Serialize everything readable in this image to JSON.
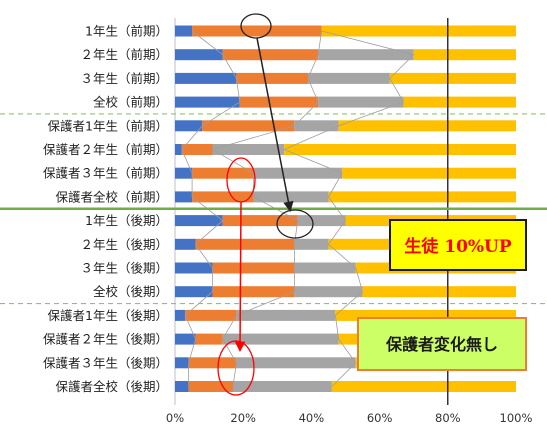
{
  "chart_data": {
    "type": "bar",
    "orientation": "horizontal",
    "stacked": "percent",
    "categories": [
      "1年生（前期）",
      "２年生（前期）",
      "３年生（前期）",
      "全校（前期）",
      "保護者1年生（前期）",
      "保護者２年生（前期）",
      "保護者３年生（前期）",
      "保護者全校（前期）",
      "1年生（後期）",
      "２年生（後期）",
      "３年生（後期）",
      "全校（後期）",
      "保護者1年生（後期）",
      "保護者２年生（後期）",
      "保護者３年生（後期）",
      "保護者全校（後期）"
    ],
    "series": [
      {
        "color": "#4472c4",
        "values": [
          5,
          14,
          18,
          19,
          8,
          2,
          5,
          5,
          14,
          6,
          11,
          11,
          3,
          6,
          4,
          4
        ]
      },
      {
        "color": "#ed7d31",
        "values": [
          38,
          28,
          21,
          23,
          27,
          9,
          18,
          18,
          22,
          29,
          24,
          24,
          15,
          8,
          14,
          13
        ]
      },
      {
        "color": "#a5a5a5",
        "values": [
          0,
          28,
          24,
          25,
          13,
          21,
          26,
          22,
          14,
          10,
          18,
          20,
          29,
          34,
          35,
          29
        ]
      },
      {
        "color": "#ffc000",
        "values": [
          57,
          30,
          37,
          33,
          52,
          68,
          51,
          55,
          50,
          55,
          47,
          45,
          53,
          52,
          47,
          54
        ]
      }
    ],
    "xlim": [
      0,
      100
    ],
    "x_ticks": [
      "0%",
      "20%",
      "40%",
      "60%",
      "80%",
      "100%"
    ],
    "reference_line_value": 80,
    "grid": false,
    "legend": "none"
  },
  "annotations": {
    "student_callout": "生徒 10%UP",
    "parent_callout": "保護者変化無し"
  },
  "colors": {
    "divider_green": "#70ad47",
    "dashed_green": "#8fc46e",
    "arrow_black": "#222222",
    "arrow_red": "#ff0000",
    "student_box_fill": "#ffff00",
    "student_box_border": "#1a1a1a",
    "student_box_text": "#ff0000",
    "parent_box_fill": "#ccff66",
    "parent_box_border": "#ed7d31",
    "parent_box_text": "#1a1a1a"
  }
}
